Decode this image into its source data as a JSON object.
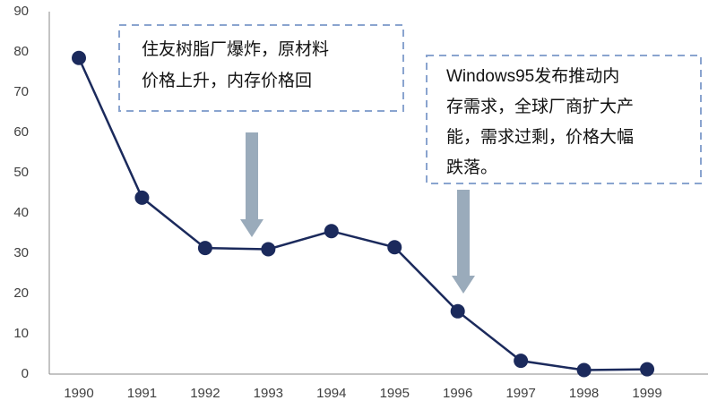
{
  "chart_data": {
    "type": "line",
    "categories": [
      "1990",
      "1991",
      "1992",
      "1993",
      "1994",
      "1995",
      "1996",
      "1997",
      "1998",
      "1999"
    ],
    "series": [
      {
        "color": "#1b2a5c",
        "values": [
          78.5,
          43.8,
          31.3,
          31.0,
          35.5,
          31.5,
          15.6,
          3.3,
          1.0,
          1.2
        ]
      }
    ],
    "ylim": [
      0,
      90
    ],
    "yticks": [
      0,
      10,
      20,
      30,
      40,
      50,
      60,
      70,
      80,
      90
    ],
    "grid": false,
    "annotations": [
      {
        "lines": [
          "住友树脂厂爆炸，原材料",
          "价格上升，内存价格回"
        ]
      },
      {
        "lines": [
          "Windows95发布推动内",
          "存需求，全球厂商扩大产",
          "能，需求过剩，价格大幅",
          "跌落。"
        ]
      }
    ]
  }
}
